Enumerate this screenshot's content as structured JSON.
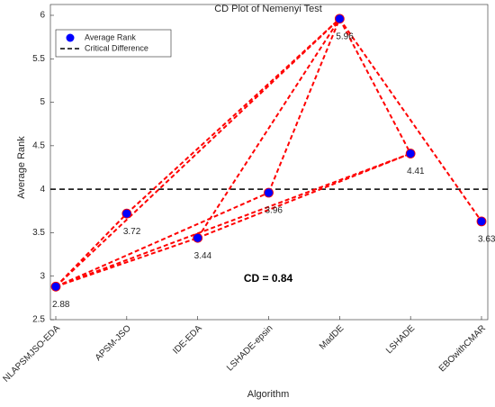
{
  "chart_data": {
    "type": "scatter",
    "title": "CD Plot of Nemenyi Test",
    "xlabel": "Algorithm",
    "ylabel": "Average Rank",
    "categories": [
      "NLAPSMJSO-EDA",
      "APSM-JSO",
      "IDE-EDA",
      "LSHADE-epsin",
      "MadDE",
      "LSHADE",
      "EBOwithCMAR"
    ],
    "series": [
      {
        "name": "Average Rank",
        "color": "#0000ff",
        "values": [
          2.88,
          3.72,
          3.44,
          3.96,
          5.96,
          4.41,
          3.63
        ]
      }
    ],
    "critical_line": {
      "name": "Critical Difference",
      "value": 4,
      "color": "#000000"
    },
    "annotation": "CD = 0.84",
    "connections": {
      "color": "#ff0000",
      "pairs": [
        [
          0,
          1
        ],
        [
          0,
          4
        ],
        [
          0,
          2
        ],
        [
          0,
          3
        ],
        [
          0,
          5
        ],
        [
          1,
          4
        ],
        [
          2,
          4
        ],
        [
          2,
          5
        ],
        [
          3,
          4
        ],
        [
          4,
          5
        ],
        [
          4,
          6
        ]
      ]
    },
    "ylim": [
      2.5,
      6
    ],
    "yticks": [
      2.5,
      3,
      3.5,
      4,
      4.5,
      5,
      5.5,
      6
    ],
    "legend": "northwest"
  }
}
